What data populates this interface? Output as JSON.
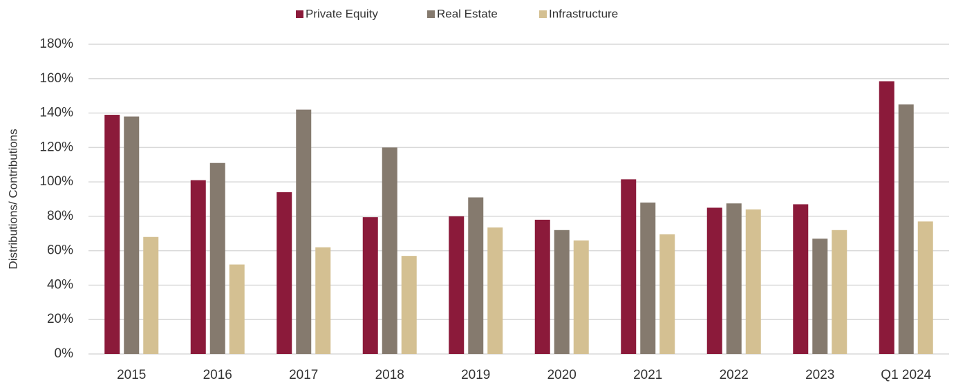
{
  "chart_data": {
    "type": "bar",
    "y_label": "Distributions/ Contributions",
    "categories": [
      "2015",
      "2016",
      "2017",
      "2018",
      "2019",
      "2020",
      "2021",
      "2022",
      "2023",
      "Q1 2024"
    ],
    "series": [
      {
        "name": "Private Equity",
        "color": "#8b1a3a",
        "values": [
          139,
          101,
          94,
          79.5,
          80,
          78,
          101.5,
          85,
          87,
          158.5
        ]
      },
      {
        "name": "Real Estate",
        "color": "#857a6e",
        "values": [
          138,
          111,
          142,
          120,
          91,
          72,
          88,
          87.5,
          67,
          145
        ]
      },
      {
        "name": "Infrastructure",
        "color": "#d4c092",
        "values": [
          68,
          52,
          62,
          57,
          73.5,
          66,
          69.5,
          84,
          72,
          77
        ]
      }
    ],
    "ylim": [
      0,
      180
    ],
    "yticks": [
      {
        "value": 0,
        "label": "0%"
      },
      {
        "value": 20,
        "label": "20%"
      },
      {
        "value": 40,
        "label": "40%"
      },
      {
        "value": 60,
        "label": "60%"
      },
      {
        "value": 80,
        "label": "80%"
      },
      {
        "value": 100,
        "label": "100%"
      },
      {
        "value": 120,
        "label": "120%"
      },
      {
        "value": 140,
        "label": "140%"
      },
      {
        "value": 160,
        "label": "160%"
      },
      {
        "value": 180,
        "label": "180%"
      }
    ],
    "grid": true,
    "legend": "top"
  }
}
